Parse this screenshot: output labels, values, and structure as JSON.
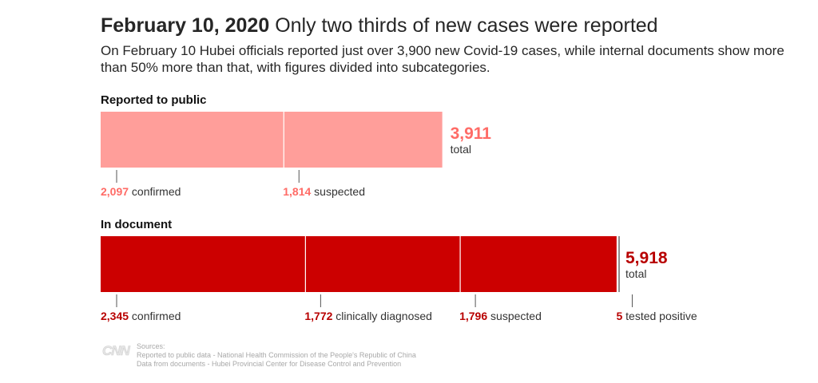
{
  "header": {
    "date": "February 10, 2020",
    "headline": "Only two thirds of new cases were reported",
    "subtitle": "On February 10 Hubei officials reported just over 3,900 new Covid-19 cases, while internal documents show more than 50% more than that, with figures divided into subcategories."
  },
  "chart_data": [
    {
      "type": "bar",
      "stacked": true,
      "orientation": "horizontal",
      "title": "Reported to public",
      "total": 3911,
      "total_label": "3,911",
      "total_text": "total",
      "color": "#ff9e9a",
      "label_color": "#ff6b66",
      "segments": [
        {
          "value": 2097,
          "value_label": "2,097",
          "name": "confirmed"
        },
        {
          "value": 1814,
          "value_label": "1,814",
          "name": "suspected"
        }
      ]
    },
    {
      "type": "bar",
      "stacked": true,
      "orientation": "horizontal",
      "title": "In document",
      "total": 5918,
      "total_label": "5,918",
      "total_text": "total",
      "color": "#cc0000",
      "label_color": "#b80000",
      "segments": [
        {
          "value": 2345,
          "value_label": "2,345",
          "name": "confirmed"
        },
        {
          "value": 1772,
          "value_label": "1,772",
          "name": "clinically diagnosed"
        },
        {
          "value": 1796,
          "value_label": "1,796",
          "name": "suspected"
        },
        {
          "value": 5,
          "value_label": "5",
          "name": "tested positive"
        }
      ]
    }
  ],
  "sources": {
    "logo": "CNN",
    "heading": "Sources:",
    "line1": "Reported to public data - National Health Commission of the People's Republic of China",
    "line2": "Data from documents - Hubei Provincial Center for Disease Control and Prevention"
  }
}
